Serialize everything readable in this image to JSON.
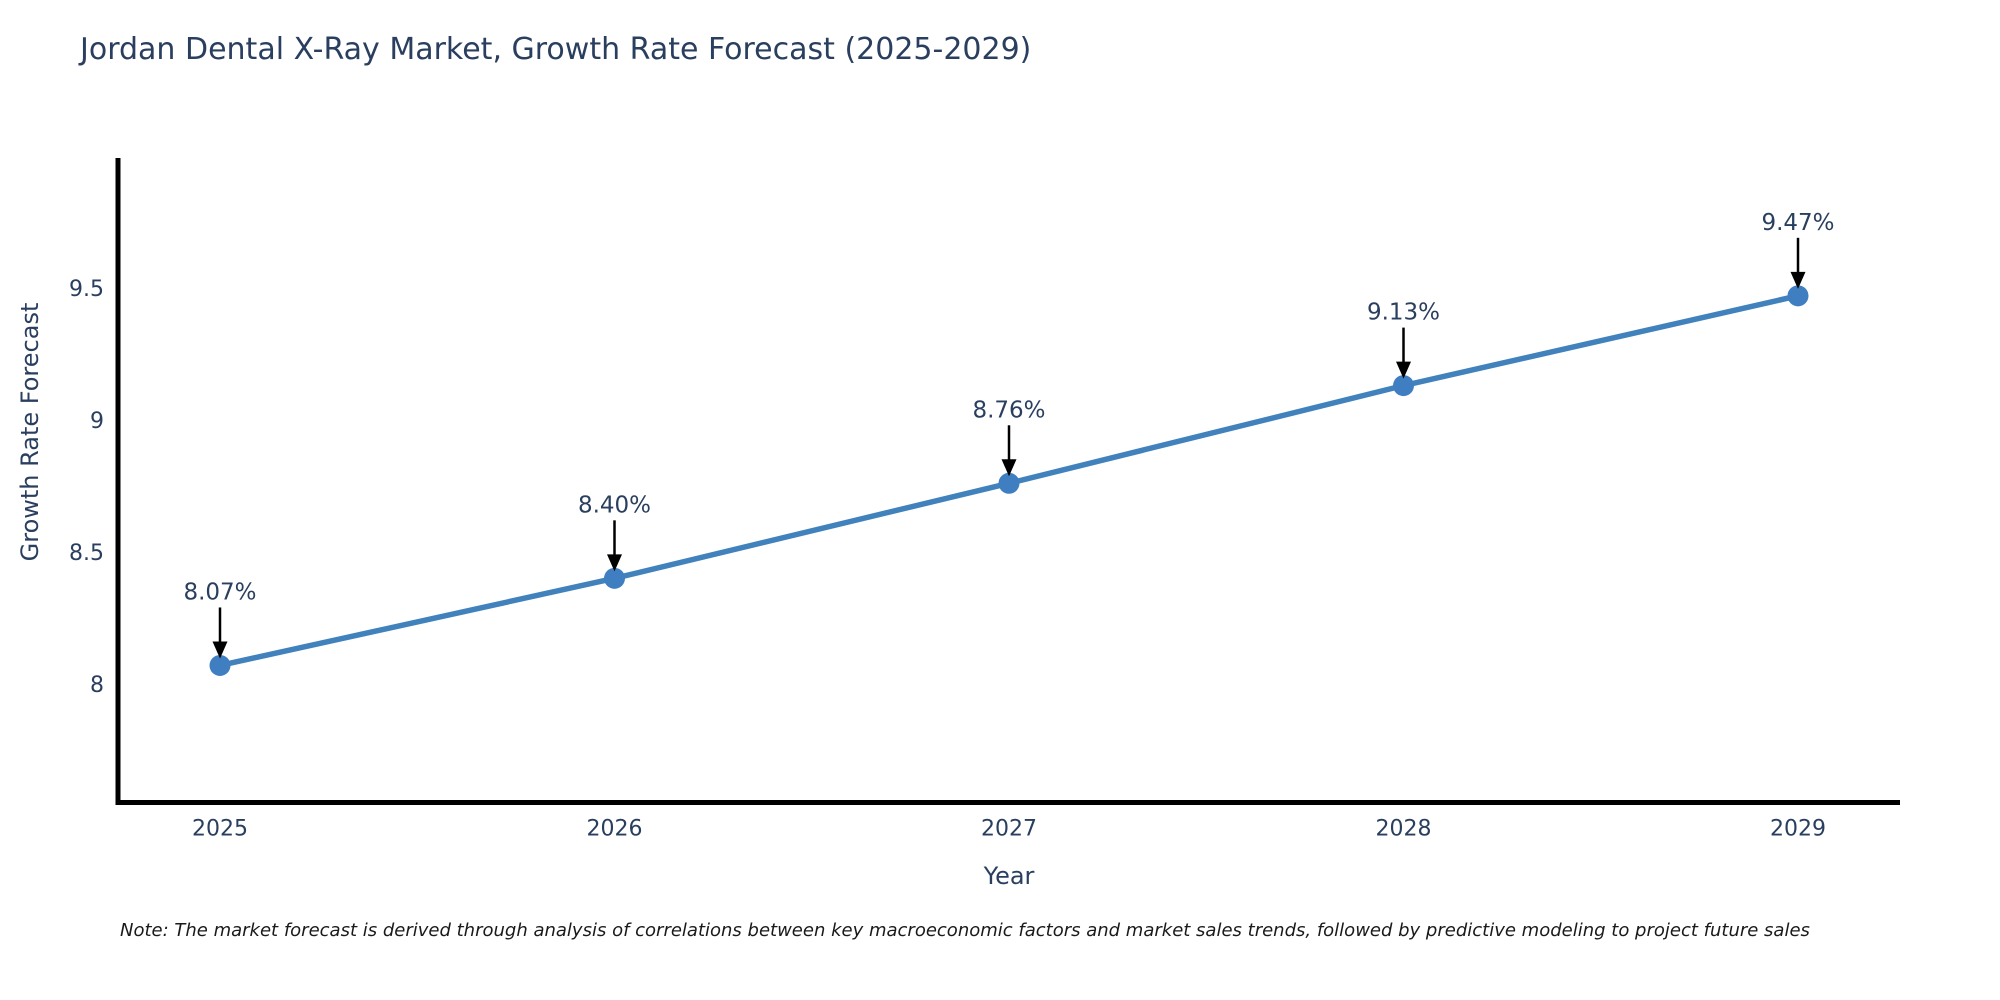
{
  "title": "Jordan Dental X-Ray Market, Growth Rate Forecast (2025-2029)",
  "footnote": "Note: The market forecast is derived through analysis of correlations between key macroeconomic factors and market sales trends, followed by predictive modeling to project future sales",
  "chart_data": {
    "type": "line",
    "title": "Jordan Dental X-Ray Market, Growth Rate Forecast (2025-2029)",
    "xlabel": "Year",
    "ylabel": "Growth Rate Forecast",
    "categories": [
      "2025",
      "2026",
      "2027",
      "2028",
      "2029"
    ],
    "series": [
      {
        "name": "Growth Rate Forecast",
        "values": [
          8.07,
          8.4,
          8.76,
          9.13,
          9.47
        ]
      }
    ],
    "data_labels": [
      "8.07%",
      "8.40%",
      "8.76%",
      "9.13%",
      "9.47%"
    ],
    "yticks": [
      8,
      8.5,
      9,
      9.5
    ],
    "ytick_labels": [
      "8",
      "8.5",
      "9",
      "9.5"
    ],
    "ylim": [
      7.55,
      9.99
    ],
    "grid": false,
    "legend_position": "none",
    "line_color": "#4182bd",
    "marker_color": "#3f7fc1",
    "axis_color": "#000000",
    "text_color": "#2a3f5f",
    "annotation_arrow_color": "#000000"
  }
}
